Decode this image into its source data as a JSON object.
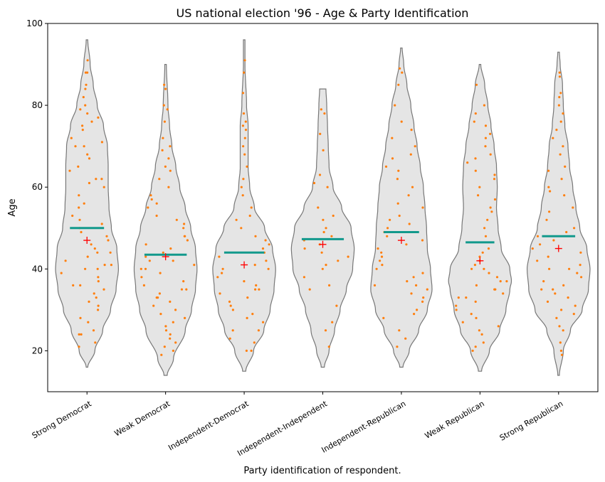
{
  "chart_data": {
    "type": "violin",
    "title": "US national election '96 - Age & Party Identification",
    "xlabel": "Party identification of respondent.",
    "ylabel": "Age",
    "ylim": [
      10,
      100
    ],
    "yticks": [
      "20",
      "40",
      "60",
      "80",
      "100"
    ],
    "grid": false,
    "colors": {
      "violin_fill": "#e5e5e5",
      "violin_edge": "#777777",
      "points": "#ff7f0e",
      "median": "#12998c",
      "mean": "#ff0000"
    },
    "categories": [
      "Strong Democrat",
      "Weak Democrat",
      "Independent-Democrat",
      "Independent-Independent",
      "Independent-Republican",
      "Weak Republican",
      "Strong Republican"
    ],
    "medians": [
      50,
      43.5,
      44,
      47.3,
      49,
      46.5,
      48
    ],
    "means": [
      47,
      43,
      41,
      46,
      47,
      42,
      45
    ],
    "ranges": [
      [
        16,
        96
      ],
      [
        14,
        90
      ],
      [
        15,
        96
      ],
      [
        16,
        84
      ],
      [
        16,
        94
      ],
      [
        15,
        90
      ],
      [
        14,
        93
      ]
    ],
    "density_profiles": [
      [
        [
          16,
          0.01
        ],
        [
          20,
          0.1
        ],
        [
          25,
          0.2
        ],
        [
          30,
          0.3
        ],
        [
          35,
          0.37
        ],
        [
          40,
          0.4
        ],
        [
          45,
          0.38
        ],
        [
          50,
          0.31
        ],
        [
          55,
          0.28
        ],
        [
          60,
          0.27
        ],
        [
          65,
          0.27
        ],
        [
          70,
          0.26
        ],
        [
          75,
          0.21
        ],
        [
          80,
          0.13
        ],
        [
          85,
          0.08
        ],
        [
          90,
          0.04
        ],
        [
          96,
          0.01
        ]
      ],
      [
        [
          14,
          0.02
        ],
        [
          18,
          0.1
        ],
        [
          25,
          0.25
        ],
        [
          30,
          0.33
        ],
        [
          35,
          0.38
        ],
        [
          40,
          0.4
        ],
        [
          45,
          0.38
        ],
        [
          50,
          0.32
        ],
        [
          55,
          0.25
        ],
        [
          60,
          0.18
        ],
        [
          65,
          0.13
        ],
        [
          70,
          0.08
        ],
        [
          75,
          0.05
        ],
        [
          80,
          0.03
        ],
        [
          90,
          0.01
        ]
      ],
      [
        [
          15,
          0.02
        ],
        [
          20,
          0.12
        ],
        [
          25,
          0.25
        ],
        [
          30,
          0.33
        ],
        [
          35,
          0.38
        ],
        [
          40,
          0.4
        ],
        [
          45,
          0.36
        ],
        [
          50,
          0.26
        ],
        [
          55,
          0.13
        ],
        [
          60,
          0.07
        ],
        [
          65,
          0.05
        ],
        [
          70,
          0.05
        ],
        [
          75,
          0.05
        ],
        [
          80,
          0.03
        ],
        [
          90,
          0.01
        ],
        [
          96,
          0.01
        ]
      ],
      [
        [
          16,
          0.02
        ],
        [
          20,
          0.08
        ],
        [
          25,
          0.15
        ],
        [
          30,
          0.22
        ],
        [
          35,
          0.3
        ],
        [
          40,
          0.38
        ],
        [
          45,
          0.4
        ],
        [
          50,
          0.36
        ],
        [
          55,
          0.24
        ],
        [
          60,
          0.13
        ],
        [
          65,
          0.08
        ],
        [
          70,
          0.07
        ],
        [
          75,
          0.06
        ],
        [
          80,
          0.05
        ],
        [
          84,
          0.04
        ]
      ],
      [
        [
          16,
          0.02
        ],
        [
          20,
          0.1
        ],
        [
          25,
          0.22
        ],
        [
          30,
          0.33
        ],
        [
          35,
          0.39
        ],
        [
          40,
          0.37
        ],
        [
          45,
          0.33
        ],
        [
          50,
          0.32
        ],
        [
          55,
          0.3
        ],
        [
          60,
          0.28
        ],
        [
          65,
          0.24
        ],
        [
          70,
          0.2
        ],
        [
          75,
          0.16
        ],
        [
          80,
          0.12
        ],
        [
          85,
          0.07
        ],
        [
          90,
          0.03
        ],
        [
          94,
          0.01
        ]
      ],
      [
        [
          15,
          0.02
        ],
        [
          20,
          0.12
        ],
        [
          25,
          0.25
        ],
        [
          30,
          0.33
        ],
        [
          35,
          0.38
        ],
        [
          37,
          0.4
        ],
        [
          40,
          0.38
        ],
        [
          45,
          0.27
        ],
        [
          50,
          0.23
        ],
        [
          55,
          0.21
        ],
        [
          60,
          0.22
        ],
        [
          65,
          0.21
        ],
        [
          70,
          0.18
        ],
        [
          75,
          0.14
        ],
        [
          80,
          0.1
        ],
        [
          85,
          0.06
        ],
        [
          90,
          0.01
        ]
      ],
      [
        [
          14,
          0.01
        ],
        [
          20,
          0.06
        ],
        [
          25,
          0.15
        ],
        [
          30,
          0.3
        ],
        [
          35,
          0.38
        ],
        [
          40,
          0.4
        ],
        [
          45,
          0.36
        ],
        [
          50,
          0.27
        ],
        [
          55,
          0.22
        ],
        [
          60,
          0.18
        ],
        [
          65,
          0.14
        ],
        [
          70,
          0.12
        ],
        [
          75,
          0.08
        ],
        [
          80,
          0.06
        ],
        [
          85,
          0.05
        ],
        [
          90,
          0.02
        ],
        [
          93,
          0.01
        ]
      ]
    ],
    "points": [
      [
        21,
        22,
        24,
        24,
        25,
        27,
        28,
        30,
        31,
        32,
        33,
        34,
        35,
        36,
        36,
        37,
        38,
        39,
        40,
        40,
        41,
        41,
        42,
        43,
        44,
        44,
        45,
        46,
        47,
        48,
        49,
        50,
        51,
        52,
        53,
        55,
        56,
        58,
        60,
        61,
        62,
        62,
        64,
        65,
        67,
        68,
        70,
        70,
        71,
        72,
        74,
        75,
        76,
        77,
        78,
        79,
        80,
        82,
        84,
        85,
        88,
        88,
        91
      ],
      [
        19,
        20,
        21,
        22,
        23,
        24,
        25,
        26,
        27,
        28,
        29,
        30,
        31,
        32,
        33,
        33,
        34,
        35,
        35,
        36,
        37,
        38,
        39,
        40,
        40,
        41,
        42,
        42,
        43,
        44,
        45,
        46,
        47,
        48,
        48,
        50,
        51,
        52,
        53,
        55,
        56,
        57,
        58,
        60,
        62,
        64,
        65,
        67,
        69,
        70,
        72,
        76,
        79,
        80,
        84,
        85
      ],
      [
        20,
        20,
        22,
        23,
        25,
        25,
        27,
        28,
        29,
        30,
        31,
        32,
        33,
        34,
        35,
        35,
        36,
        37,
        38,
        39,
        40,
        40,
        41,
        42,
        43,
        44,
        45,
        46,
        47,
        48,
        50,
        52,
        53,
        55,
        58,
        60,
        62,
        65,
        68,
        70,
        72,
        74,
        75,
        76,
        78,
        83,
        88,
        91
      ],
      [
        21,
        25,
        27,
        31,
        35,
        36,
        38,
        40,
        41,
        42,
        43,
        44,
        45,
        46,
        47,
        48,
        49,
        50,
        52,
        53,
        55,
        60,
        61,
        63,
        69,
        73,
        78,
        79
      ],
      [
        21,
        23,
        25,
        28,
        29,
        30,
        32,
        33,
        34,
        35,
        36,
        36,
        37,
        38,
        39,
        40,
        41,
        42,
        43,
        44,
        45,
        46,
        47,
        48,
        49,
        50,
        51,
        52,
        53,
        55,
        56,
        58,
        60,
        62,
        64,
        65,
        67,
        68,
        70,
        72,
        74,
        76,
        80,
        85,
        88,
        89
      ],
      [
        20,
        21,
        22,
        24,
        25,
        26,
        27,
        28,
        29,
        30,
        31,
        32,
        33,
        33,
        34,
        35,
        35,
        36,
        37,
        37,
        38,
        39,
        40,
        40,
        41,
        42,
        43,
        44,
        45,
        48,
        50,
        52,
        54,
        55,
        57,
        58,
        60,
        62,
        63,
        64,
        66,
        67,
        68,
        70,
        72,
        73,
        75,
        76,
        78,
        80,
        85
      ],
      [
        19,
        20,
        22,
        25,
        26,
        28,
        29,
        30,
        31,
        32,
        33,
        34,
        35,
        35,
        36,
        37,
        38,
        39,
        40,
        40,
        41,
        42,
        43,
        44,
        45,
        46,
        47,
        48,
        49,
        50,
        52,
        54,
        55,
        58,
        59,
        60,
        62,
        64,
        65,
        68,
        70,
        72,
        74,
        76,
        78,
        80,
        82,
        83,
        87,
        88
      ]
    ]
  }
}
